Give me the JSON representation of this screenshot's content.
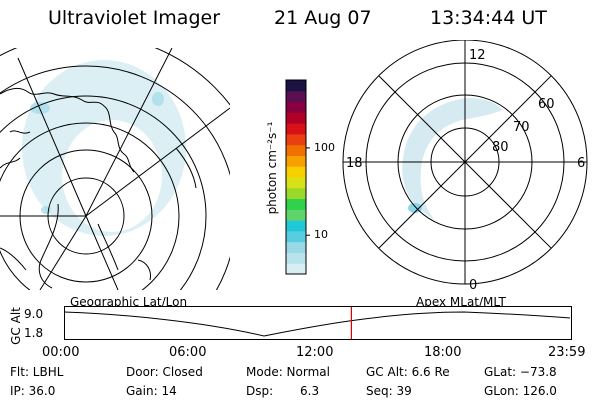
{
  "header": {
    "instrument": "Ultraviolet Imager",
    "date": "21 Aug 07",
    "time": "13:34:44 UT"
  },
  "polar": {
    "mlt_labels": {
      "top": "12",
      "right": "6",
      "bottom": "0",
      "left": "18"
    },
    "lat_labels": [
      "60",
      "70",
      "80"
    ]
  },
  "colorbar": {
    "unit_label": "photon cm⁻²s⁻¹",
    "ticks": [
      "100",
      "10"
    ],
    "colors": [
      "#d8eef3",
      "#b8e3ec",
      "#9ad8e6",
      "#58cde0",
      "#20c8d8",
      "#5fd46a",
      "#2fd24a",
      "#9ad82a",
      "#d8e018",
      "#f8d000",
      "#f8a000",
      "#f07000",
      "#e84010",
      "#d81018",
      "#b00028",
      "#880040",
      "#5a1050",
      "#1a1240"
    ]
  },
  "labels": {
    "geographic": "Geographic Lat/Lon",
    "apex": "Apex MLat/MLT"
  },
  "altitude_strip": {
    "axis_label": "GC Alt",
    "y_ticks": [
      "9.0",
      "1.8"
    ],
    "time_ticks": [
      "00:00",
      "06:00",
      "12:00",
      "18:00",
      "23:59"
    ],
    "current_time_fraction": 0.566,
    "marker_color": "#e00000"
  },
  "info": {
    "filter": "Flt: LBHL",
    "ip": "IP: 36.0",
    "door": "Door: Closed",
    "gain": "Gain: 14",
    "mode": "Mode: Normal",
    "dsp_label": "Dsp:",
    "dsp_value": "6.3",
    "gc_alt": "GC Alt: 6.6 Re",
    "seq": "Seq: 39",
    "glat": "GLat: −73.8",
    "glon": "GLon: 126.0"
  }
}
